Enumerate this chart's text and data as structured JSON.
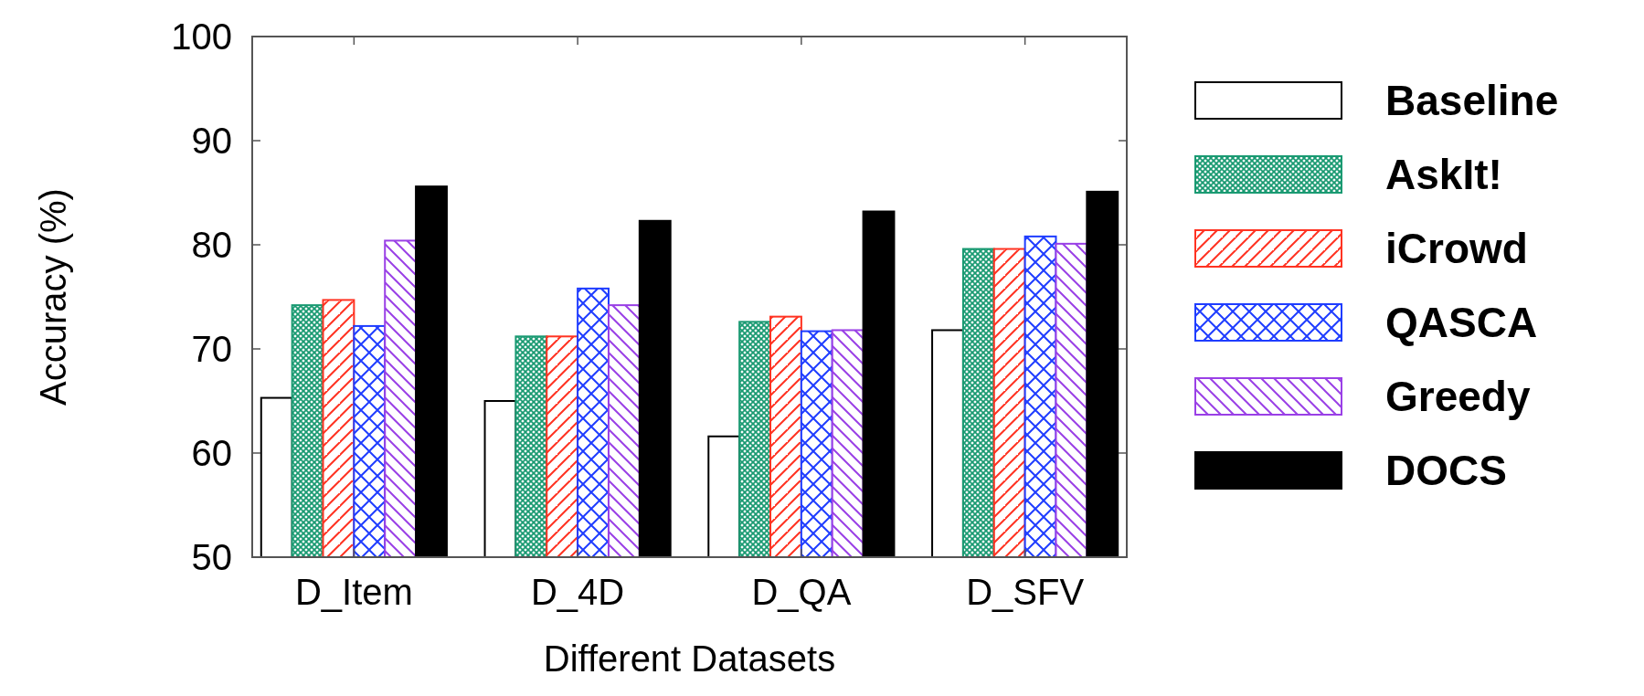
{
  "chart_data": {
    "type": "bar",
    "xlabel": "Different Datasets",
    "ylabel": "Accuracy (%)",
    "categories": [
      "D_Item",
      "D_4D",
      "D_QA",
      "D_SFV"
    ],
    "series": [
      {
        "name": "Baseline",
        "color": "#ffffff",
        "values": [
          65.3,
          65.0,
          61.6,
          71.8
        ]
      },
      {
        "name": "AskIt!",
        "color": "#1a9a72",
        "values": [
          74.2,
          71.2,
          72.6,
          79.6
        ]
      },
      {
        "name": "iCrowd",
        "color": "#ff3322",
        "values": [
          74.7,
          71.2,
          73.1,
          79.6
        ]
      },
      {
        "name": "QASCA",
        "color": "#1f3dff",
        "values": [
          72.2,
          75.8,
          71.7,
          80.8
        ]
      },
      {
        "name": "Greedy",
        "color": "#9a40e6",
        "values": [
          80.4,
          74.2,
          71.8,
          80.1
        ]
      },
      {
        "name": "DOCS",
        "color": "#000000",
        "values": [
          85.6,
          82.3,
          83.2,
          85.1
        ]
      }
    ],
    "ylim": [
      50,
      100
    ],
    "yticks": [
      50,
      60,
      70,
      80,
      90,
      100
    ],
    "grid": false,
    "legend": "right"
  }
}
